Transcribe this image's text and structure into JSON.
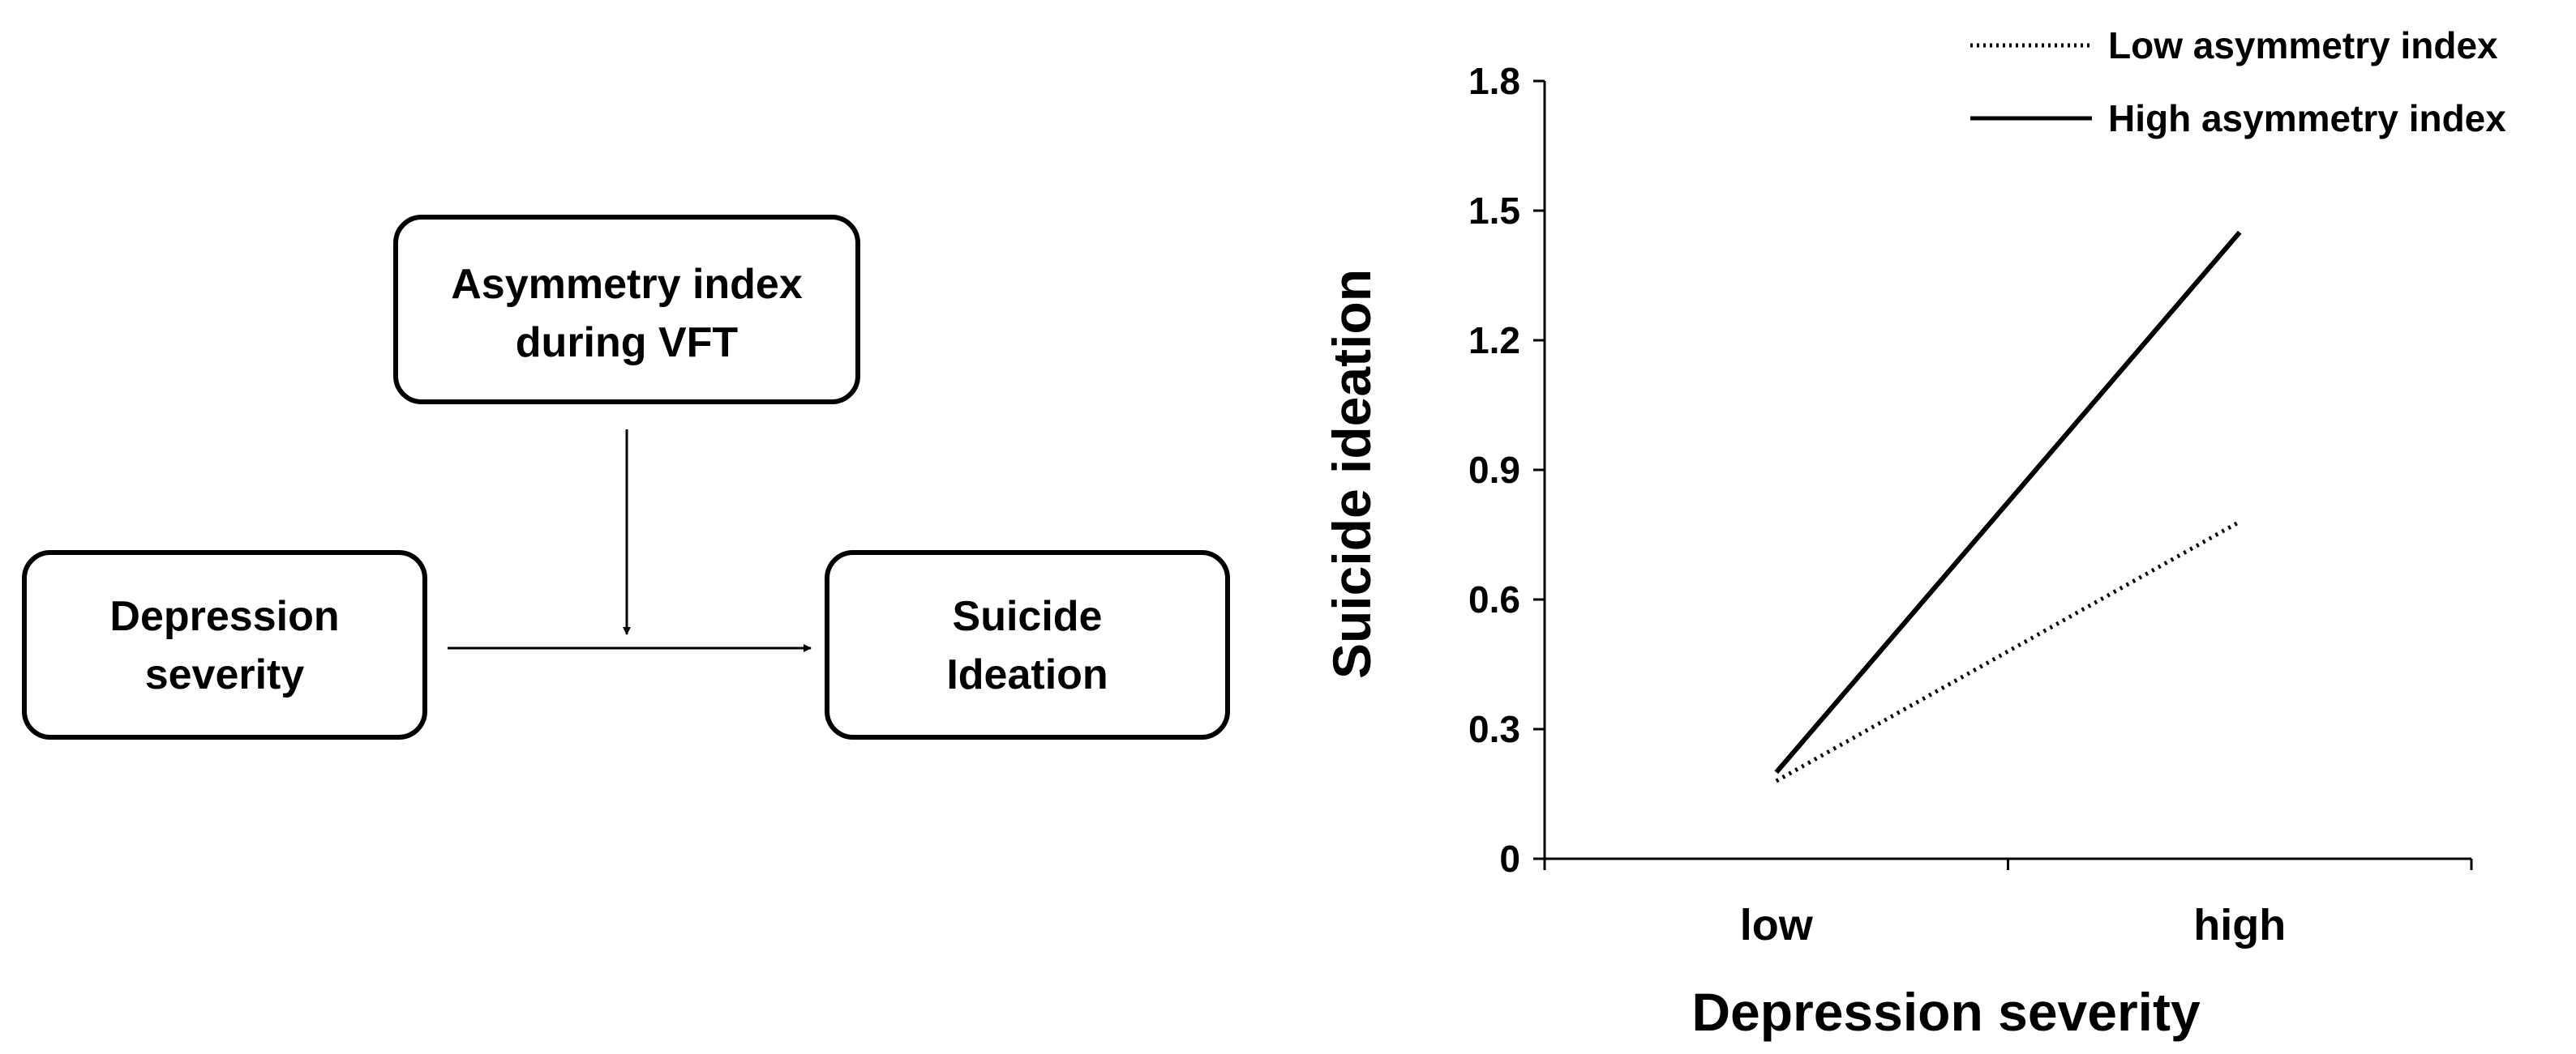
{
  "diagram": {
    "boxes": {
      "moderator": [
        "Asymmetry  index",
        "during VFT"
      ],
      "predictor": [
        "Depression",
        "severity"
      ],
      "outcome": [
        "Suicide",
        "Ideation"
      ]
    }
  },
  "chart_data": {
    "type": "line",
    "title": "",
    "xlabel": "Depression severity",
    "ylabel": "Suicide ideation",
    "categories": [
      "low",
      "high"
    ],
    "ylim": [
      0,
      1.8
    ],
    "yticks": [
      0,
      0.3,
      0.6,
      0.9,
      1.2,
      1.5,
      1.8
    ],
    "ytick_labels": [
      "0",
      "0.3",
      "0.6",
      "0.9",
      "1.2",
      "1.5",
      "1.8"
    ],
    "grid": false,
    "legend_position": "top-right",
    "series": [
      {
        "name": "Low asymmetry  index",
        "values": [
          0.18,
          0.78
        ],
        "style": "dotted",
        "color": "#000000"
      },
      {
        "name": "High asymmetry  index",
        "values": [
          0.2,
          1.45
        ],
        "style": "solid",
        "color": "#000000"
      }
    ]
  }
}
